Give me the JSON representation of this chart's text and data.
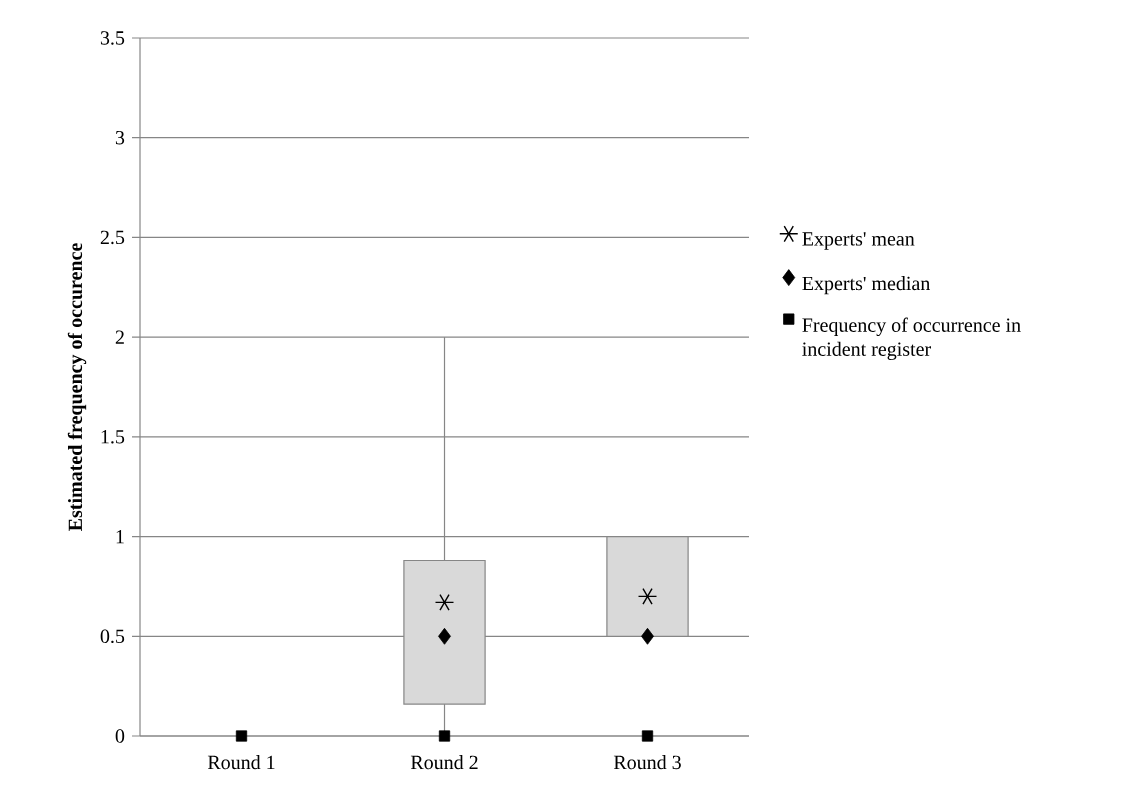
{
  "chart_data": {
    "type": "box",
    "ylabel": "Estimated frequency of occurence",
    "categories": [
      "Round 1",
      "Round 2",
      "Round 3"
    ],
    "boxes": [
      null,
      {
        "low": 0,
        "q1": 0.16,
        "q3": 0.88,
        "high": 2
      },
      {
        "low": 0.5,
        "q1": 0.5,
        "q3": 1,
        "high": 1
      }
    ],
    "color": "#d9d9d9",
    "series": [
      {
        "name": "Experts' mean",
        "type": "scatter",
        "marker": "cross",
        "color": "#000000",
        "values": [
          null,
          0.67,
          0.7
        ]
      },
      {
        "name": "Experts' median",
        "type": "scatter",
        "marker": "diamond",
        "color": "#000000",
        "values": [
          null,
          0.5,
          0.5
        ]
      },
      {
        "name": "Frequency of occurrence in incident register",
        "type": "scatter",
        "marker": "square",
        "color": "#000000",
        "values": [
          0,
          0,
          0
        ]
      }
    ],
    "ylim": [
      0,
      3.5
    ],
    "yticks": [
      0,
      0.5,
      1,
      1.5,
      2,
      2.5,
      3,
      3.5
    ],
    "grid": "y",
    "legend": "right"
  }
}
